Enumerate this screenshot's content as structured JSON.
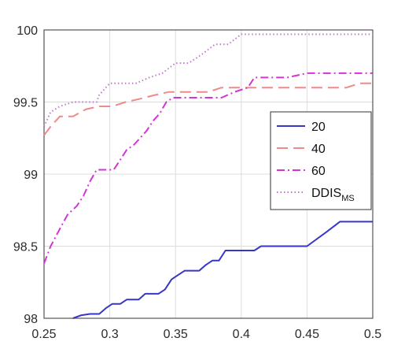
{
  "chart_data": {
    "type": "line",
    "xlim": [
      0.25,
      0.5
    ],
    "ylim": [
      98,
      100
    ],
    "xticks": [
      0.25,
      0.3,
      0.35,
      0.4,
      0.45,
      0.5
    ],
    "yticks": [
      98,
      98.5,
      99,
      99.5,
      100
    ],
    "xtick_labels": [
      "0.25",
      "0.3",
      "0.35",
      "0.4",
      "0.45",
      "0.5"
    ],
    "ytick_labels": [
      "98",
      "98.5",
      "99",
      "99.5",
      "100"
    ],
    "grid": true,
    "legend_position": "right",
    "series": [
      {
        "name": "20",
        "color": "#3636c8",
        "dash": "solid",
        "x": [
          0.272,
          0.278,
          0.285,
          0.292,
          0.297,
          0.302,
          0.308,
          0.313,
          0.322,
          0.327,
          0.337,
          0.342,
          0.347,
          0.352,
          0.357,
          0.362,
          0.368,
          0.373,
          0.378,
          0.383,
          0.388,
          0.4,
          0.41,
          0.415,
          0.425,
          0.44,
          0.45,
          0.465,
          0.475,
          0.5
        ],
        "y": [
          98.0,
          98.02,
          98.03,
          98.03,
          98.07,
          98.1,
          98.1,
          98.13,
          98.13,
          98.17,
          98.17,
          98.2,
          98.27,
          98.3,
          98.33,
          98.33,
          98.33,
          98.37,
          98.4,
          98.4,
          98.47,
          98.47,
          98.47,
          98.5,
          98.5,
          98.5,
          98.5,
          98.6,
          98.67,
          98.67
        ]
      },
      {
        "name": "40",
        "color": "#ef8a8a",
        "dash": "long",
        "x": [
          0.25,
          0.255,
          0.262,
          0.272,
          0.282,
          0.292,
          0.302,
          0.312,
          0.322,
          0.335,
          0.345,
          0.36,
          0.375,
          0.385,
          0.4,
          0.415,
          0.43,
          0.45,
          0.465,
          0.48,
          0.49,
          0.5
        ],
        "y": [
          99.27,
          99.33,
          99.4,
          99.4,
          99.45,
          99.47,
          99.47,
          99.5,
          99.52,
          99.55,
          99.57,
          99.57,
          99.57,
          99.6,
          99.6,
          99.6,
          99.6,
          99.6,
          99.6,
          99.6,
          99.63,
          99.63
        ]
      },
      {
        "name": "60",
        "color": "#d633d6",
        "dash": "dashdot",
        "x": [
          0.25,
          0.255,
          0.262,
          0.268,
          0.275,
          0.28,
          0.285,
          0.29,
          0.297,
          0.303,
          0.308,
          0.313,
          0.318,
          0.323,
          0.328,
          0.333,
          0.338,
          0.343,
          0.348,
          0.355,
          0.365,
          0.375,
          0.385,
          0.395,
          0.405,
          0.41,
          0.42,
          0.435,
          0.45,
          0.47,
          0.5
        ],
        "y": [
          98.38,
          98.5,
          98.62,
          98.72,
          98.78,
          98.85,
          98.95,
          99.03,
          99.03,
          99.03,
          99.1,
          99.17,
          99.2,
          99.25,
          99.3,
          99.37,
          99.42,
          99.5,
          99.53,
          99.53,
          99.53,
          99.53,
          99.53,
          99.57,
          99.6,
          99.67,
          99.67,
          99.67,
          99.7,
          99.7,
          99.7
        ]
      },
      {
        "name": "DDIS_MS",
        "label_main": "DDIS",
        "label_sub": "MS",
        "color": "#c079c8",
        "dash": "dotted",
        "x": [
          0.25,
          0.255,
          0.262,
          0.272,
          0.282,
          0.29,
          0.292,
          0.3,
          0.31,
          0.32,
          0.33,
          0.34,
          0.35,
          0.36,
          0.37,
          0.38,
          0.39,
          0.4,
          0.41,
          0.43,
          0.45,
          0.475,
          0.5
        ],
        "y": [
          99.33,
          99.43,
          99.47,
          99.5,
          99.5,
          99.5,
          99.55,
          99.63,
          99.63,
          99.63,
          99.67,
          99.7,
          99.77,
          99.77,
          99.83,
          99.9,
          99.9,
          99.97,
          99.97,
          99.97,
          99.97,
          99.97,
          99.97
        ]
      }
    ]
  }
}
